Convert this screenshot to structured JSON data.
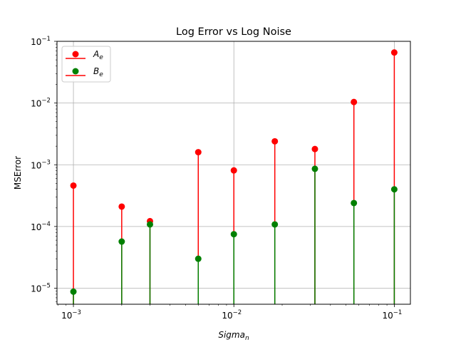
{
  "chart_data": {
    "type": "stem",
    "title": "Log Error vs Log Noise",
    "xlabel": "Sigma",
    "xlabel_sub": "n",
    "ylabel": "MSError",
    "xscale": "log",
    "yscale": "log",
    "xlim": [
      0.00079,
      0.126
    ],
    "ylim": [
      5.5e-06,
      0.1
    ],
    "grid": "major",
    "legend_position": "top-left",
    "x": [
      0.001,
      0.002,
      0.003,
      0.006,
      0.01,
      0.018,
      0.032,
      0.056,
      0.1
    ],
    "x_ticks": [
      {
        "value": 0.001,
        "base": "10",
        "exp": "−3"
      },
      {
        "value": 0.01,
        "base": "10",
        "exp": "−2"
      },
      {
        "value": 0.1,
        "base": "10",
        "exp": "−1"
      }
    ],
    "y_ticks": [
      {
        "value": 1e-05,
        "base": "10",
        "exp": "−5"
      },
      {
        "value": 0.0001,
        "base": "10",
        "exp": "−4"
      },
      {
        "value": 0.001,
        "base": "10",
        "exp": "−3"
      },
      {
        "value": 0.01,
        "base": "10",
        "exp": "−2"
      },
      {
        "value": 0.1,
        "base": "10",
        "exp": "−1"
      }
    ],
    "series": [
      {
        "name": "A",
        "name_sub": "e",
        "color": "#ff0000",
        "values": [
          0.00046,
          0.00021,
          0.000122,
          0.0016,
          0.00081,
          0.0024,
          0.0018,
          0.0104,
          0.066
        ]
      },
      {
        "name": "B",
        "name_sub": "e",
        "color": "#008000",
        "values": [
          8.8e-06,
          5.7e-05,
          0.000108,
          3e-05,
          7.5e-05,
          0.000108,
          0.00086,
          0.00024,
          0.0004
        ]
      }
    ]
  }
}
